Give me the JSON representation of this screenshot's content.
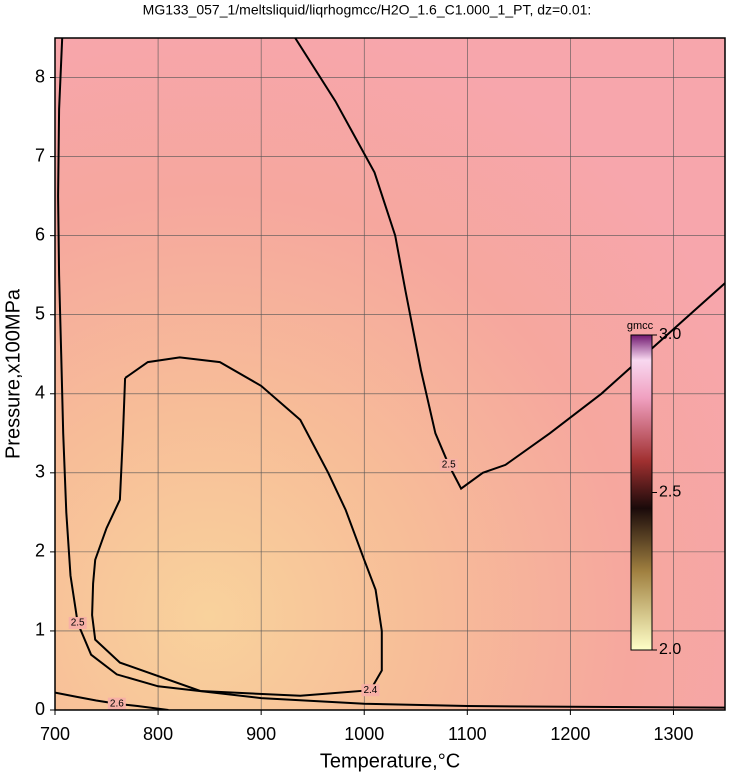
{
  "chart_data": {
    "type": "contour",
    "title": "MG133_057_1/meltsliquid/liqrhogmcc/H2O_1.6_C1.000_1_PT, dz=0.01:",
    "xlabel": "Temperature,°C",
    "ylabel": "Pressure,x100MPa",
    "xlim": [
      700,
      1350
    ],
    "ylim": [
      0,
      8.5
    ],
    "xticks": [
      700,
      800,
      900,
      1000,
      1100,
      1200,
      1300
    ],
    "yticks": [
      0,
      1,
      2,
      3,
      4,
      5,
      6,
      7,
      8
    ],
    "grid": true,
    "contours": [
      {
        "level": 2.5,
        "x": [
          707,
          704,
          703,
          704,
          706,
          708,
          711,
          715,
          722,
          735,
          760,
          800,
          900,
          1000,
          1100,
          1200,
          1350
        ],
        "y": [
          8.5,
          7.6,
          6.5,
          5.5,
          4.5,
          3.5,
          2.5,
          1.7,
          1.1,
          0.7,
          0.45,
          0.3,
          0.15,
          0.08,
          0.05,
          0.04,
          0.03
        ]
      },
      {
        "level": 2.5,
        "x": [
          933,
          972,
          1010,
          1030,
          1040,
          1055,
          1069,
          1082,
          1094,
          1115,
          1137,
          1180,
          1230,
          1290,
          1350
        ],
        "y": [
          8.5,
          7.7,
          6.8,
          6,
          5.3,
          4.3,
          3.5,
          3.1,
          2.8,
          3.0,
          3.1,
          3.5,
          4.0,
          4.7,
          5.4
        ]
      },
      {
        "level": 2.4,
        "x": [
          768,
          790,
          821,
          860,
          900,
          938,
          965,
          982,
          1000,
          1011,
          1017,
          1017,
          1006,
          938,
          841,
          763,
          739,
          736,
          737,
          739,
          750,
          763,
          766,
          768
        ],
        "y": [
          4.2,
          4.4,
          4.46,
          4.4,
          4.1,
          3.67,
          3.0,
          2.53,
          1.9,
          1.52,
          1.0,
          0.5,
          0.25,
          0.18,
          0.24,
          0.6,
          0.89,
          1.2,
          1.6,
          1.9,
          2.3,
          2.66,
          3.5,
          4.2
        ]
      },
      {
        "level": 2.6,
        "x": [
          700,
          720,
          740,
          760,
          780,
          810
        ],
        "y": [
          0.22,
          0.17,
          0.12,
          0.08,
          0.05,
          0
        ]
      }
    ],
    "colorbar": {
      "label": "gmcc",
      "lim": [
        2.0,
        3.0
      ],
      "ticks": [
        {
          "value": 2.0,
          "label": "2.0"
        },
        2.5,
        {
          "value": 3.0,
          "label": "3.0"
        }
      ]
    }
  }
}
